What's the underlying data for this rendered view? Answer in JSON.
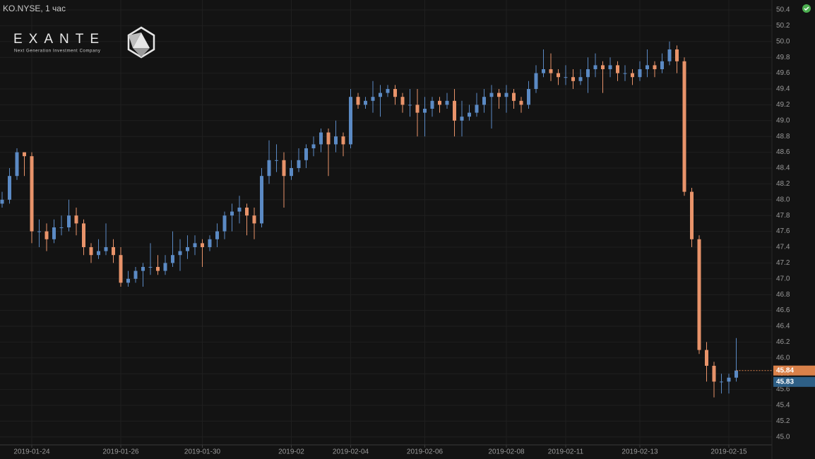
{
  "chart_data": {
    "type": "candlestick",
    "title": "KO.NYSE, 1 час",
    "watermark": {
      "name": "EXANTE",
      "tagline": "Next Generation Investment Company"
    },
    "categories": [
      null,
      null,
      null,
      null,
      "2019-01-24",
      null,
      null,
      null,
      null,
      null,
      null,
      null,
      null,
      null,
      null,
      null,
      "2019-01-26",
      null,
      null,
      null,
      null,
      null,
      null,
      null,
      null,
      null,
      null,
      "2019-01-30",
      null,
      null,
      null,
      null,
      null,
      null,
      null,
      null,
      null,
      null,
      null,
      "2019-02",
      null,
      null,
      null,
      null,
      null,
      null,
      null,
      "2019-02-04",
      null,
      null,
      null,
      null,
      null,
      null,
      null,
      null,
      null,
      "2019-02-06",
      null,
      null,
      null,
      null,
      null,
      null,
      null,
      null,
      null,
      null,
      "2019-02-08",
      null,
      null,
      null,
      null,
      null,
      null,
      null,
      "2019-02-11",
      null,
      null,
      null,
      null,
      null,
      null,
      null,
      null,
      null,
      "2019-02-13",
      null,
      null,
      null,
      null,
      null,
      null,
      null,
      null,
      null,
      null,
      null,
      "2019-02-15",
      null
    ],
    "open": [
      47.95,
      48.0,
      48.3,
      48.6,
      48.55,
      47.6,
      47.6,
      47.5,
      47.65,
      47.65,
      47.8,
      47.7,
      47.4,
      47.3,
      47.35,
      47.4,
      47.3,
      46.95,
      47.0,
      47.1,
      47.15,
      47.15,
      47.1,
      47.2,
      47.3,
      47.35,
      47.4,
      47.45,
      47.4,
      47.5,
      47.6,
      47.8,
      47.85,
      47.9,
      47.8,
      47.7,
      48.3,
      48.5,
      48.5,
      48.3,
      48.4,
      48.5,
      48.65,
      48.7,
      48.85,
      48.7,
      48.8,
      48.7,
      49.3,
      49.2,
      49.25,
      49.3,
      49.35,
      49.4,
      49.3,
      49.2,
      49.2,
      49.1,
      49.15,
      49.25,
      49.2,
      49.25,
      49.0,
      49.05,
      49.1,
      49.2,
      49.3,
      49.35,
      49.3,
      49.35,
      49.25,
      49.2,
      49.4,
      49.6,
      49.65,
      49.6,
      49.55,
      49.55,
      49.5,
      49.55,
      49.65,
      49.7,
      49.65,
      49.7,
      49.6,
      49.6,
      49.55,
      49.65,
      49.7,
      49.65,
      49.75,
      49.9,
      49.75,
      48.1,
      47.5,
      46.1,
      45.9,
      45.7,
      45.7,
      45.75
    ],
    "high": [
      48.1,
      48.4,
      48.65,
      48.6,
      48.6,
      47.75,
      47.7,
      47.75,
      47.8,
      48.0,
      47.9,
      47.75,
      47.45,
      47.5,
      47.7,
      47.5,
      47.4,
      47.1,
      47.15,
      47.2,
      47.45,
      47.3,
      47.3,
      47.6,
      47.5,
      47.55,
      47.55,
      47.5,
      47.55,
      47.7,
      47.85,
      47.95,
      48.05,
      47.95,
      47.9,
      48.4,
      48.75,
      48.7,
      48.6,
      48.5,
      48.65,
      48.7,
      48.8,
      48.9,
      48.9,
      49.0,
      48.85,
      49.4,
      49.35,
      49.3,
      49.5,
      49.45,
      49.45,
      49.45,
      49.35,
      49.4,
      49.4,
      49.3,
      49.3,
      49.3,
      49.35,
      49.4,
      49.25,
      49.2,
      49.35,
      49.4,
      49.45,
      49.4,
      49.45,
      49.4,
      49.3,
      49.5,
      49.7,
      49.9,
      49.85,
      49.65,
      49.7,
      49.65,
      49.65,
      49.8,
      49.85,
      49.75,
      49.8,
      49.75,
      49.7,
      49.65,
      49.75,
      49.9,
      49.75,
      49.85,
      50.0,
      49.95,
      49.8,
      48.15,
      47.55,
      46.2,
      45.95,
      45.8,
      45.8,
      46.25
    ],
    "low": [
      47.9,
      47.95,
      48.25,
      48.3,
      47.45,
      47.4,
      47.35,
      47.45,
      47.55,
      47.6,
      47.55,
      47.3,
      47.2,
      47.25,
      47.3,
      47.2,
      46.9,
      46.9,
      46.95,
      46.9,
      47.05,
      47.05,
      47.05,
      47.15,
      47.1,
      47.25,
      47.3,
      47.15,
      47.35,
      47.4,
      47.5,
      47.6,
      47.7,
      47.55,
      47.5,
      47.65,
      48.2,
      48.35,
      47.9,
      48.25,
      48.35,
      48.4,
      48.55,
      48.6,
      48.3,
      48.6,
      48.55,
      48.65,
      49.15,
      49.15,
      49.1,
      49.05,
      49.3,
      49.2,
      49.1,
      49.05,
      48.8,
      48.8,
      49.05,
      49.1,
      49.15,
      48.8,
      48.8,
      49.0,
      49.05,
      49.1,
      48.9,
      49.15,
      49.1,
      49.15,
      49.1,
      49.15,
      49.35,
      49.55,
      49.5,
      49.45,
      49.45,
      49.4,
      49.45,
      49.35,
      49.55,
      49.35,
      49.55,
      49.5,
      49.5,
      49.45,
      49.5,
      49.55,
      49.55,
      49.6,
      49.7,
      49.6,
      48.05,
      47.4,
      46.05,
      45.7,
      45.5,
      45.55,
      45.55,
      45.7
    ],
    "close": [
      48.0,
      48.3,
      48.6,
      48.55,
      47.6,
      47.6,
      47.5,
      47.65,
      47.65,
      47.8,
      47.7,
      47.4,
      47.3,
      47.35,
      47.4,
      47.3,
      46.95,
      47.0,
      47.1,
      47.15,
      47.15,
      47.1,
      47.2,
      47.3,
      47.35,
      47.4,
      47.45,
      47.4,
      47.5,
      47.6,
      47.8,
      47.85,
      47.9,
      47.8,
      47.7,
      48.3,
      48.5,
      48.5,
      48.3,
      48.4,
      48.5,
      48.65,
      48.7,
      48.85,
      48.7,
      48.8,
      48.7,
      49.3,
      49.2,
      49.25,
      49.3,
      49.35,
      49.4,
      49.3,
      49.2,
      49.2,
      49.1,
      49.15,
      49.25,
      49.2,
      49.25,
      49.0,
      49.05,
      49.1,
      49.2,
      49.3,
      49.35,
      49.3,
      49.35,
      49.25,
      49.2,
      49.4,
      49.6,
      49.65,
      49.6,
      49.55,
      49.55,
      49.5,
      49.55,
      49.65,
      49.7,
      49.65,
      49.7,
      49.6,
      49.6,
      49.55,
      49.65,
      49.7,
      49.65,
      49.75,
      49.9,
      49.75,
      48.1,
      47.5,
      46.1,
      45.9,
      45.7,
      45.7,
      45.75,
      45.84
    ],
    "up_color": "#5b8ac4",
    "down_color": "#e8936a",
    "ylim": [
      44.9,
      50.525
    ],
    "yticks": [
      {
        "value": 45,
        "label": "45.0"
      },
      45.2,
      45.4,
      45.6,
      45.8,
      {
        "value": 46,
        "label": "46.0"
      },
      46.2,
      46.4,
      46.6,
      46.8,
      {
        "value": 47,
        "label": "47.0"
      },
      47.2,
      47.4,
      47.6,
      47.8,
      {
        "value": 48,
        "label": "48.0"
      },
      48.2,
      48.4,
      48.6,
      48.8,
      {
        "value": 49,
        "label": "49.0"
      },
      49.2,
      49.4,
      49.6,
      49.8,
      {
        "value": 50,
        "label": "50.0"
      },
      50.2,
      50.4
    ],
    "price_markers": [
      {
        "value": 45.84,
        "color": "#d9814a"
      },
      {
        "value": 45.83,
        "color": "#2e5f86"
      }
    ],
    "grid": true
  }
}
